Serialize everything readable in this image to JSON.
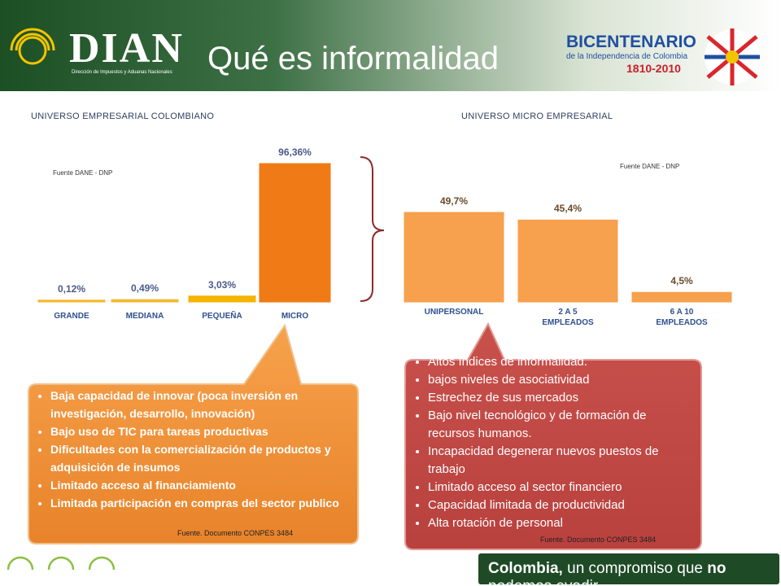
{
  "header": {
    "logo": "DIAN",
    "logo_subtitle": "Dirección de Impuestos y Aduanas Nacionales",
    "title": "Qué es informalidad",
    "badge_title": "BICENTENARIO",
    "badge_subtitle": "de la Independencia de Colombia",
    "badge_years": "1810-2010"
  },
  "chart_data": [
    {
      "type": "bar",
      "title": "UNIVERSO EMPRESARIAL COLOMBIANO",
      "source": "Fuente  DANE - DNP",
      "categories": [
        "GRANDE",
        "MEDIANA",
        "PEQUEÑA",
        "MICRO"
      ],
      "values": [
        0.12,
        0.49,
        3.03,
        96.36
      ],
      "value_labels": [
        "0,12%",
        "0,49%",
        "3,03%",
        "96,36%"
      ],
      "colors": [
        "#f5b82e",
        "#f5b82e",
        "#f5b400",
        "#f07a16"
      ]
    },
    {
      "type": "bar",
      "title": "UNIVERSO MICRO EMPRESARIAL",
      "source": "Fuente  DANE - DNP",
      "categories": [
        "UNIPERSONAL",
        "2 A 5 EMPLEADOS",
        "6 A 10 EMPLEADOS"
      ],
      "values": [
        49.7,
        45.4,
        4.5
      ],
      "value_labels": [
        "49,7%",
        "45,4%",
        "4,5%"
      ],
      "colors": [
        "#f7a04e",
        "#f7a04e",
        "#f7a04e"
      ]
    }
  ],
  "callouts": [
    {
      "items": [
        "Baja capacidad de innovar (poca inversión en investigación, desarrollo, innovación)",
        "Bajo uso de TIC para tareas productivas",
        "Dificultades con la comercialización de productos y adquisición de insumos",
        "Limitado acceso al financiamiento",
        "Limitada participación en compras del sector publico"
      ],
      "source": "Fuente. Documento CONPES 3484"
    },
    {
      "items": [
        "Altos índices de informalidad.",
        "bajos niveles de asociatividad",
        "Estrechez de sus mercados",
        "Bajo nivel tecnológico y de formación de recursos humanos.",
        "Incapacidad degenerar nuevos puestos de trabajo",
        "Limitado acceso al sector financiero",
        "Capacidad limitada de productividad",
        "Alta rotación de personal"
      ],
      "source": "Fuente. Documento CONPES 3484"
    }
  ],
  "footer": {
    "parts": [
      "Colombia,",
      " un compromiso que ",
      "no",
      " podemos evadir."
    ]
  }
}
